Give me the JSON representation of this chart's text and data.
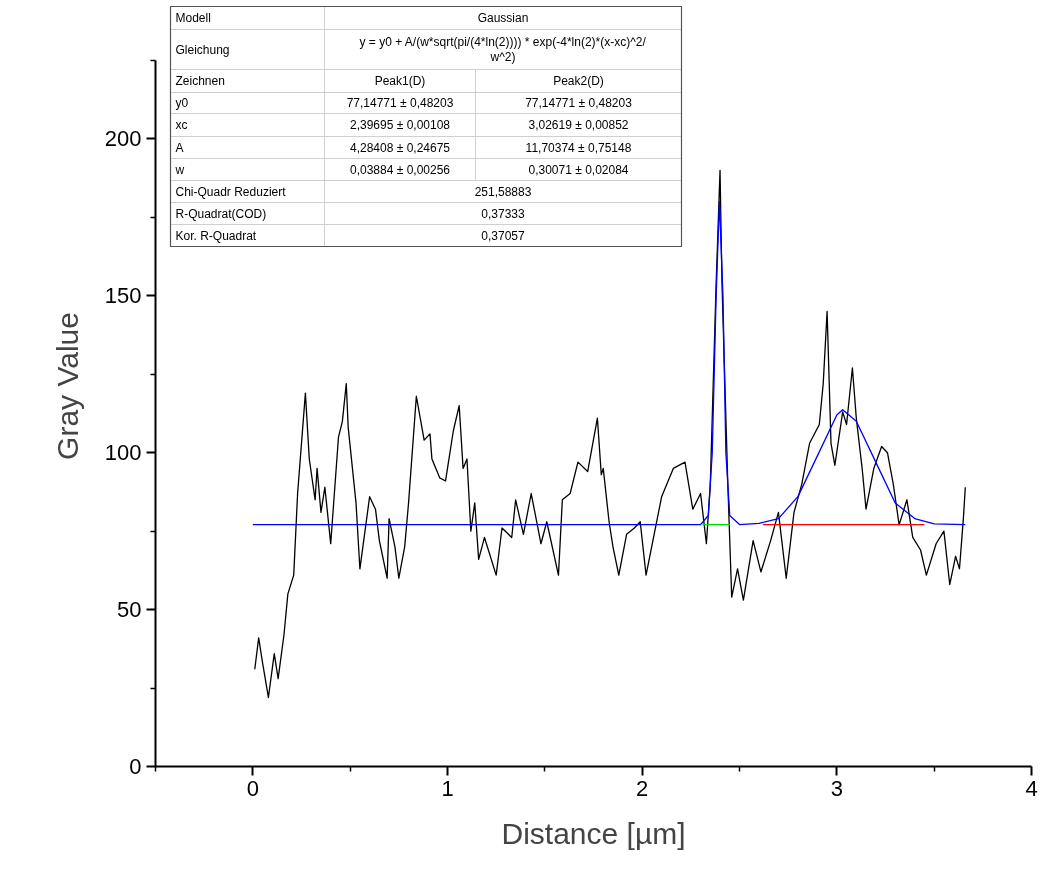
{
  "chart_data": {
    "type": "line",
    "xlabel": "Distance [µm]",
    "ylabel": "Gray Value",
    "xlim": [
      -0.5,
      4
    ],
    "ylim": [
      0,
      225
    ],
    "xticks": [
      {
        "value": -0.5,
        "label": null
      },
      0,
      {
        "value": 0.5,
        "label": null
      },
      1,
      {
        "value": 1.5,
        "label": null
      },
      2,
      {
        "value": 2.5,
        "label": null
      },
      3,
      {
        "value": 3.5,
        "label": null
      },
      4
    ],
    "yticks": [
      0,
      {
        "value": 25,
        "label": null
      },
      50,
      {
        "value": 75,
        "label": null
      },
      100,
      {
        "value": 125,
        "label": null
      },
      150,
      {
        "value": 175,
        "label": null
      },
      200,
      {
        "value": 225,
        "label": null
      }
    ],
    "grid": false,
    "marker": "none",
    "line_style": "solid",
    "series": [
      {
        "color": "#000000",
        "x": [
          0.01,
          0.03,
          0.05,
          0.08,
          0.11,
          0.13,
          0.16,
          0.18,
          0.21,
          0.23,
          0.27,
          0.29,
          0.32,
          0.33,
          0.35,
          0.37,
          0.4,
          0.44,
          0.46,
          0.48,
          0.49,
          0.53,
          0.55,
          0.6,
          0.63,
          0.65,
          0.69,
          0.7,
          0.73,
          0.75,
          0.78,
          0.8,
          0.84,
          0.88,
          0.91,
          0.92,
          0.96,
          0.99,
          1.03,
          1.06,
          1.08,
          1.1,
          1.12,
          1.14,
          1.16,
          1.19,
          1.25,
          1.28,
          1.33,
          1.35,
          1.39,
          1.43,
          1.48,
          1.51,
          1.57,
          1.59,
          1.63,
          1.67,
          1.72,
          1.77,
          1.79,
          1.8,
          1.83,
          1.85,
          1.88,
          1.92,
          1.96,
          1.99,
          2.02,
          2.1,
          2.16,
          2.22,
          2.26,
          2.3,
          2.33,
          2.35,
          2.38,
          2.4,
          2.41,
          2.44,
          2.46,
          2.49,
          2.52,
          2.57,
          2.61,
          2.66,
          2.7,
          2.74,
          2.78,
          2.82,
          2.86,
          2.91,
          2.93,
          2.95,
          2.97,
          2.99,
          3.03,
          3.05,
          3.08,
          3.1,
          3.13,
          3.15,
          3.19,
          3.23,
          3.26,
          3.29,
          3.32,
          3.36,
          3.39,
          3.43,
          3.46,
          3.51,
          3.55,
          3.58,
          3.61,
          3.63,
          3.65,
          3.66
        ],
        "values": [
          31,
          41,
          33,
          22,
          36,
          28,
          42,
          55,
          61,
          87,
          119,
          98,
          85,
          95,
          81,
          89,
          71,
          105,
          110,
          122,
          108,
          84,
          63,
          86,
          82,
          72,
          60,
          79,
          70,
          60,
          70,
          84,
          118,
          104,
          106,
          98,
          92,
          91,
          107,
          115,
          95,
          98,
          75,
          84,
          66,
          73,
          61,
          76,
          73,
          85,
          74,
          87,
          71,
          78,
          61,
          85,
          87,
          97,
          94,
          111,
          93,
          95,
          78,
          70,
          61,
          74,
          76,
          78,
          61,
          86,
          95,
          97,
          82,
          87,
          71,
          90,
          154,
          190,
          154,
          90,
          54,
          63,
          53,
          72,
          62,
          72,
          81,
          60,
          81,
          90,
          103,
          109,
          122,
          145,
          103,
          96,
          113,
          109,
          127,
          111,
          95,
          82,
          95,
          102,
          100,
          90,
          77,
          85,
          73,
          69,
          61,
          71,
          75,
          58,
          67,
          63,
          79,
          89
        ]
      },
      {
        "color": "#0000ff",
        "x": [
          0,
          2.3,
          2.34,
          2.36,
          2.38,
          2.397,
          2.415,
          2.43,
          2.45,
          2.5,
          2.6,
          2.7,
          2.8,
          2.9,
          3.0,
          3.03,
          3.1,
          3.2,
          3.3,
          3.4,
          3.5,
          3.66
        ],
        "values": [
          77.1,
          77.1,
          80,
          100,
          150,
          180,
          150,
          100,
          80,
          77.1,
          77.5,
          79,
          86,
          99,
          112,
          113.7,
          110,
          97,
          84,
          79,
          77.3,
          77.1
        ]
      },
      {
        "color": "#00dd00",
        "x": [
          2.31,
          2.45
        ],
        "values": [
          77.1,
          77.1
        ]
      },
      {
        "color": "#ff0000",
        "x": [
          2.62,
          3.45
        ],
        "values": [
          77.1,
          77.1
        ]
      }
    ],
    "annotations": [
      "Modell",
      "Gaussian",
      "Gleichung",
      "y = y0 + A/(w*sqrt(pi/(4*ln(2)))) * exp(-4*ln(2)*(x-xc)^2/\nw^2)",
      "Zeichnen",
      "Peak1(D)",
      "Peak2(D)",
      "y0",
      "77,14771 ± 0,48203",
      "77,14771 ± 0,48203",
      "xc",
      "2,39695 ± 0,00108",
      "3,02619 ± 0,00852",
      "A",
      "4,28408 ± 0,24675",
      "11,70374 ± 0,75148",
      "w",
      "0,03884 ± 0,00256",
      "0,30071 ± 0,02084",
      "Chi-Quadr Reduziert",
      "251,58883",
      "R-Quadrat(COD)",
      "0,37333",
      "Kor. R-Quadrat",
      "0,37057"
    ]
  }
}
